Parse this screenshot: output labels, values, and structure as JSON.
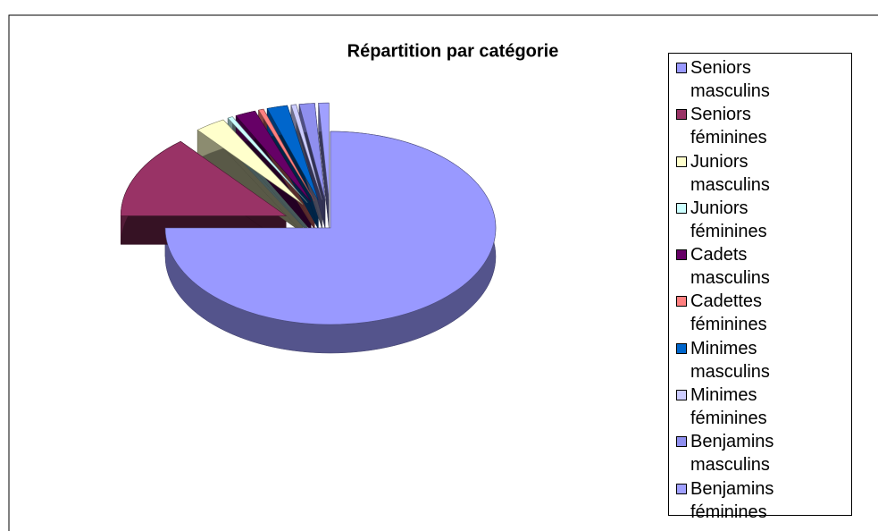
{
  "chart_data": {
    "type": "pie",
    "title": "Répartition par catégorie",
    "categories": [
      "Seniors masculins",
      "Seniors féminines",
      "Juniors masculins",
      "Juniors féminines",
      "Cadets masculins",
      "Cadettes féminines",
      "Minimes masculins",
      "Minimes féminines",
      "Benjamins masculins",
      "Benjamins féminines"
    ],
    "values": [
      75,
      14,
      3,
      0.5,
      2,
      0.5,
      2,
      0.5,
      1.5,
      1
    ],
    "colors": [
      "#9999ff",
      "#993366",
      "#ffffcc",
      "#ccffff",
      "#660066",
      "#ff8080",
      "#0066cc",
      "#ccccff",
      "#8f8fef",
      "#a0a0ff"
    ],
    "legend": "right"
  }
}
